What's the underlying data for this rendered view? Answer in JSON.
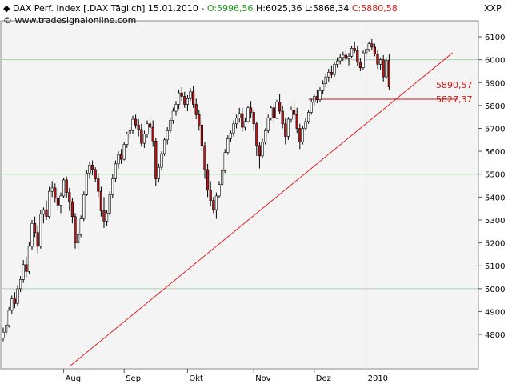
{
  "header": {
    "symbol": "DAX Perf. Index [.DAX  Täglich]",
    "date": "15.01.2010",
    "open_label": "O:",
    "open": "5996,56",
    "high_label": "H:",
    "high": "6025,36",
    "low_label": "L:",
    "low": "5868,34",
    "close_label": "C:",
    "close": "5880,58",
    "exchange": "XXP",
    "website": "© www.tradesignalonline.com"
  },
  "colors": {
    "up": "#ffffff",
    "down": "#b5171a",
    "wick": "#000000",
    "trendline": "#e02020",
    "support": "#c41a1a",
    "grid_h": "#a8d4a8",
    "grid_v": "#c4c4c4",
    "open_text": "#1a9c1a",
    "close_text": "#d01c1c",
    "price_label": "#d01c1c"
  },
  "chart_data": {
    "type": "candlestick",
    "title": "DAX Perf. Index [.DAX  Täglich]",
    "ylim": [
      4650,
      6170
    ],
    "yticks": [
      4800,
      4900,
      5000,
      5100,
      5200,
      5300,
      5400,
      5500,
      5600,
      5700,
      5800,
      5900,
      6000,
      6100
    ],
    "ytick_labels": [
      "4800",
      "4900",
      "5000",
      "5100",
      "5200",
      "5300",
      "5400",
      "5500",
      "5600",
      "5700",
      "5800",
      "5900",
      "6000",
      "6100"
    ],
    "hgrid": [
      5000,
      5500,
      6000
    ],
    "months": [
      "Aug",
      "Sep",
      "Okt",
      "Nov",
      "Dez",
      "2010"
    ],
    "month_start_index": [
      21,
      42,
      64,
      87,
      108,
      126
    ],
    "vgrid_index": 126,
    "candles": [
      [
        4785,
        4830,
        4770,
        4810
      ],
      [
        4810,
        4855,
        4795,
        4840
      ],
      [
        4840,
        4920,
        4830,
        4905
      ],
      [
        4905,
        4970,
        4890,
        4955
      ],
      [
        4955,
        4985,
        4915,
        4935
      ],
      [
        4935,
        5015,
        4925,
        5000
      ],
      [
        5000,
        5055,
        4985,
        5040
      ],
      [
        5040,
        5125,
        5025,
        5105
      ],
      [
        5105,
        5140,
        5050,
        5075
      ],
      [
        5075,
        5205,
        5065,
        5185
      ],
      [
        5185,
        5300,
        5170,
        5285
      ],
      [
        5285,
        5315,
        5225,
        5245
      ],
      [
        5245,
        5275,
        5155,
        5185
      ],
      [
        5185,
        5345,
        5175,
        5325
      ],
      [
        5325,
        5355,
        5285,
        5345
      ],
      [
        5345,
        5385,
        5300,
        5315
      ],
      [
        5315,
        5445,
        5305,
        5425
      ],
      [
        5425,
        5470,
        5400,
        5440
      ],
      [
        5440,
        5460,
        5375,
        5395
      ],
      [
        5395,
        5430,
        5345,
        5365
      ],
      [
        5365,
        5420,
        5330,
        5405
      ],
      [
        5405,
        5485,
        5395,
        5475
      ],
      [
        5475,
        5490,
        5395,
        5420
      ],
      [
        5420,
        5440,
        5340,
        5380
      ],
      [
        5380,
        5395,
        5285,
        5315
      ],
      [
        5315,
        5330,
        5175,
        5200
      ],
      [
        5200,
        5250,
        5165,
        5235
      ],
      [
        5235,
        5320,
        5225,
        5305
      ],
      [
        5305,
        5425,
        5295,
        5410
      ],
      [
        5410,
        5520,
        5405,
        5505
      ],
      [
        5505,
        5555,
        5480,
        5540
      ],
      [
        5540,
        5560,
        5495,
        5520
      ],
      [
        5520,
        5530,
        5465,
        5480
      ],
      [
        5480,
        5505,
        5400,
        5425
      ],
      [
        5425,
        5445,
        5315,
        5340
      ],
      [
        5340,
        5400,
        5265,
        5295
      ],
      [
        5295,
        5345,
        5275,
        5330
      ],
      [
        5330,
        5425,
        5320,
        5410
      ],
      [
        5410,
        5500,
        5395,
        5480
      ],
      [
        5480,
        5560,
        5465,
        5545
      ],
      [
        5545,
        5600,
        5525,
        5585
      ],
      [
        5585,
        5610,
        5545,
        5565
      ],
      [
        5565,
        5640,
        5560,
        5630
      ],
      [
        5630,
        5685,
        5615,
        5675
      ],
      [
        5675,
        5705,
        5655,
        5690
      ],
      [
        5690,
        5755,
        5675,
        5740
      ],
      [
        5740,
        5760,
        5700,
        5715
      ],
      [
        5715,
        5740,
        5665,
        5695
      ],
      [
        5695,
        5720,
        5620,
        5635
      ],
      [
        5635,
        5690,
        5615,
        5675
      ],
      [
        5675,
        5735,
        5660,
        5720
      ],
      [
        5720,
        5745,
        5685,
        5705
      ],
      [
        5705,
        5735,
        5620,
        5645
      ],
      [
        5645,
        5660,
        5450,
        5480
      ],
      [
        5480,
        5545,
        5465,
        5530
      ],
      [
        5530,
        5600,
        5520,
        5590
      ],
      [
        5590,
        5660,
        5580,
        5650
      ],
      [
        5650,
        5705,
        5630,
        5690
      ],
      [
        5690,
        5745,
        5680,
        5735
      ],
      [
        5735,
        5790,
        5720,
        5775
      ],
      [
        5775,
        5820,
        5755,
        5805
      ],
      [
        5805,
        5870,
        5785,
        5855
      ],
      [
        5855,
        5880,
        5820,
        5840
      ],
      [
        5840,
        5860,
        5790,
        5805
      ],
      [
        5805,
        5845,
        5775,
        5830
      ],
      [
        5830,
        5875,
        5820,
        5860
      ],
      [
        5860,
        5885,
        5790,
        5805
      ],
      [
        5805,
        5830,
        5740,
        5760
      ],
      [
        5760,
        5780,
        5690,
        5715
      ],
      [
        5715,
        5735,
        5600,
        5625
      ],
      [
        5625,
        5640,
        5480,
        5520
      ],
      [
        5520,
        5545,
        5400,
        5430
      ],
      [
        5430,
        5470,
        5360,
        5385
      ],
      [
        5385,
        5400,
        5330,
        5345
      ],
      [
        5345,
        5420,
        5305,
        5405
      ],
      [
        5405,
        5470,
        5395,
        5455
      ],
      [
        5455,
        5530,
        5445,
        5515
      ],
      [
        5515,
        5610,
        5505,
        5595
      ],
      [
        5595,
        5670,
        5585,
        5655
      ],
      [
        5655,
        5690,
        5640,
        5680
      ],
      [
        5680,
        5735,
        5665,
        5720
      ],
      [
        5720,
        5760,
        5700,
        5745
      ],
      [
        5745,
        5790,
        5725,
        5765
      ],
      [
        5765,
        5790,
        5685,
        5705
      ],
      [
        5705,
        5745,
        5690,
        5730
      ],
      [
        5730,
        5800,
        5725,
        5790
      ],
      [
        5790,
        5820,
        5745,
        5770
      ],
      [
        5770,
        5780,
        5690,
        5720
      ],
      [
        5720,
        5730,
        5580,
        5625
      ],
      [
        5625,
        5640,
        5525,
        5580
      ],
      [
        5580,
        5655,
        5570,
        5640
      ],
      [
        5640,
        5700,
        5630,
        5690
      ],
      [
        5690,
        5760,
        5680,
        5745
      ],
      [
        5745,
        5800,
        5735,
        5790
      ],
      [
        5790,
        5805,
        5720,
        5745
      ],
      [
        5745,
        5825,
        5740,
        5815
      ],
      [
        5815,
        5850,
        5765,
        5775
      ],
      [
        5775,
        5800,
        5700,
        5720
      ],
      [
        5720,
        5745,
        5630,
        5665
      ],
      [
        5665,
        5750,
        5650,
        5740
      ],
      [
        5740,
        5795,
        5725,
        5780
      ],
      [
        5780,
        5815,
        5740,
        5760
      ],
      [
        5760,
        5790,
        5680,
        5700
      ],
      [
        5700,
        5720,
        5610,
        5640
      ],
      [
        5640,
        5710,
        5630,
        5700
      ],
      [
        5700,
        5745,
        5690,
        5730
      ],
      [
        5730,
        5780,
        5720,
        5770
      ],
      [
        5770,
        5830,
        5760,
        5815
      ],
      [
        5815,
        5850,
        5800,
        5840
      ],
      [
        5840,
        5870,
        5810,
        5825
      ],
      [
        5825,
        5880,
        5815,
        5865
      ],
      [
        5865,
        5910,
        5850,
        5895
      ],
      [
        5895,
        5935,
        5880,
        5925
      ],
      [
        5925,
        5960,
        5905,
        5945
      ],
      [
        5945,
        5975,
        5920,
        5935
      ],
      [
        5935,
        5990,
        5925,
        5980
      ],
      [
        5980,
        6010,
        5965,
        5995
      ],
      [
        5995,
        6025,
        5980,
        6010
      ],
      [
        6010,
        6035,
        5995,
        6020
      ],
      [
        6020,
        6045,
        5990,
        6005
      ],
      [
        6005,
        6030,
        5975,
        6015
      ],
      [
        6015,
        6060,
        6005,
        6050
      ],
      [
        6050,
        6080,
        6030,
        6040
      ],
      [
        6040,
        6060,
        5975,
        5990
      ],
      [
        5990,
        6005,
        5950,
        5965
      ],
      [
        5965,
        6040,
        5955,
        6030
      ],
      [
        6030,
        6060,
        6010,
        6045
      ],
      [
        6045,
        6080,
        6035,
        6070
      ],
      [
        6070,
        6090,
        6040,
        6055
      ],
      [
        6055,
        6070,
        6015,
        6025
      ],
      [
        6025,
        6040,
        5960,
        5980
      ],
      [
        5980,
        6010,
        5955,
        6000
      ],
      [
        6000,
        6020,
        5905,
        5925
      ],
      [
        5925,
        6010,
        5915,
        5997
      ],
      [
        5997,
        6025,
        5868,
        5881
      ]
    ],
    "trendline": {
      "from_index": 23,
      "from_value": 4660,
      "to_index": 156,
      "to_value": 6030
    },
    "support": {
      "from_index": 106,
      "to_index": 158,
      "value": 5827.37
    },
    "labels": [
      {
        "text": "5890,57",
        "value": 5890.57
      },
      {
        "text": "5827,37",
        "value": 5827.37
      }
    ]
  }
}
